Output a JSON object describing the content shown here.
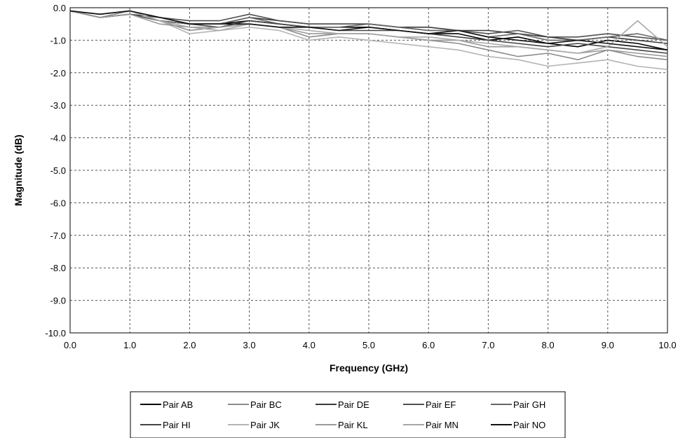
{
  "chart_data": {
    "type": "line",
    "title": "",
    "xlabel": "Frequency (GHz)",
    "ylabel": "Magnitude (dB)",
    "xlim": [
      0,
      10
    ],
    "ylim": [
      -10,
      0
    ],
    "x_ticks": [
      "0.0",
      "1.0",
      "2.0",
      "3.0",
      "4.0",
      "5.0",
      "6.0",
      "7.0",
      "8.0",
      "9.0",
      "10.0"
    ],
    "y_ticks": [
      "0.0",
      "-1.0",
      "-2.0",
      "-3.0",
      "-4.0",
      "-5.0",
      "-6.0",
      "-7.0",
      "-8.0",
      "-9.0",
      "-10.0"
    ],
    "grid": true,
    "legend_position": "bottom",
    "x": [
      0.0,
      0.5,
      1.0,
      1.5,
      2.0,
      2.5,
      3.0,
      3.5,
      4.0,
      4.5,
      5.0,
      5.5,
      6.0,
      6.5,
      7.0,
      7.5,
      8.0,
      8.5,
      9.0,
      9.5,
      10.0
    ],
    "series": [
      {
        "name": "Pair AB",
        "color": "#000000",
        "values": [
          -0.1,
          -0.3,
          -0.2,
          -0.4,
          -0.5,
          -0.5,
          -0.4,
          -0.5,
          -0.6,
          -0.6,
          -0.6,
          -0.7,
          -0.8,
          -0.8,
          -1.0,
          -0.9,
          -1.1,
          -1.2,
          -1.0,
          -1.1,
          -1.3
        ]
      },
      {
        "name": "Pair BC",
        "color": "#8c8c8c",
        "values": [
          -0.1,
          -0.3,
          -0.1,
          -0.4,
          -0.7,
          -0.6,
          -0.5,
          -0.6,
          -0.9,
          -0.8,
          -0.8,
          -0.9,
          -1.0,
          -1.1,
          -1.3,
          -1.5,
          -1.4,
          -1.6,
          -1.3,
          -1.5,
          -1.6
        ]
      },
      {
        "name": "Pair DE",
        "color": "#3a3a3a",
        "values": [
          -0.1,
          -0.2,
          -0.1,
          -0.3,
          -0.5,
          -0.5,
          -0.3,
          -0.4,
          -0.5,
          -0.5,
          -0.5,
          -0.6,
          -0.6,
          -0.7,
          -0.7,
          -0.8,
          -0.9,
          -1.0,
          -0.9,
          -1.0,
          -1.1
        ]
      },
      {
        "name": "Pair EF",
        "color": "#505050",
        "values": [
          -0.1,
          -0.2,
          -0.1,
          -0.3,
          -0.4,
          -0.4,
          -0.2,
          -0.4,
          -0.5,
          -0.5,
          -0.5,
          -0.6,
          -0.7,
          -0.7,
          -0.8,
          -0.7,
          -0.9,
          -0.9,
          -0.8,
          -0.9,
          -1.0
        ]
      },
      {
        "name": "Pair GH",
        "color": "#666666",
        "values": [
          -0.1,
          -0.3,
          -0.2,
          -0.4,
          -0.5,
          -0.5,
          -0.3,
          -0.5,
          -0.6,
          -0.6,
          -0.5,
          -0.6,
          -0.7,
          -0.7,
          -0.9,
          -0.8,
          -1.0,
          -1.0,
          -0.9,
          -0.8,
          -1.0
        ]
      },
      {
        "name": "Pair HI",
        "color": "#444444",
        "values": [
          -0.1,
          -0.3,
          -0.2,
          -0.3,
          -0.5,
          -0.6,
          -0.4,
          -0.5,
          -0.6,
          -0.7,
          -0.7,
          -0.7,
          -0.8,
          -0.9,
          -1.0,
          -1.1,
          -1.2,
          -1.1,
          -1.2,
          -1.3,
          -1.4
        ]
      },
      {
        "name": "Pair JK",
        "color": "#b4b4b4",
        "values": [
          -0.1,
          -0.2,
          -0.1,
          -0.4,
          -0.8,
          -0.7,
          -0.6,
          -0.7,
          -1.0,
          -0.9,
          -1.0,
          -1.1,
          -1.2,
          -1.3,
          -1.5,
          -1.6,
          -1.8,
          -1.7,
          -1.6,
          -1.8,
          -1.9
        ]
      },
      {
        "name": "Pair KL",
        "color": "#9a9a9a",
        "values": [
          -0.1,
          -0.3,
          -0.2,
          -0.5,
          -0.6,
          -0.6,
          -0.5,
          -0.6,
          -0.8,
          -0.8,
          -0.8,
          -0.9,
          -1.0,
          -1.0,
          -1.2,
          -1.2,
          -1.3,
          -1.4,
          -1.3,
          -1.4,
          -1.5
        ]
      },
      {
        "name": "Pair MN",
        "color": "#a8a8a8",
        "values": [
          -0.1,
          -0.2,
          -0.1,
          -0.4,
          -0.6,
          -0.7,
          -0.5,
          -0.6,
          -0.7,
          -0.8,
          -0.8,
          -0.9,
          -0.9,
          -1.0,
          -1.1,
          -1.2,
          -1.3,
          -1.4,
          -1.2,
          -0.4,
          -1.2
        ]
      },
      {
        "name": "Pair NO",
        "color": "#111111",
        "values": [
          -0.1,
          -0.2,
          -0.1,
          -0.3,
          -0.5,
          -0.5,
          -0.5,
          -0.6,
          -0.6,
          -0.7,
          -0.6,
          -0.7,
          -0.8,
          -0.7,
          -0.9,
          -1.0,
          -1.1,
          -1.0,
          -1.1,
          -1.2,
          -1.3
        ]
      }
    ]
  }
}
